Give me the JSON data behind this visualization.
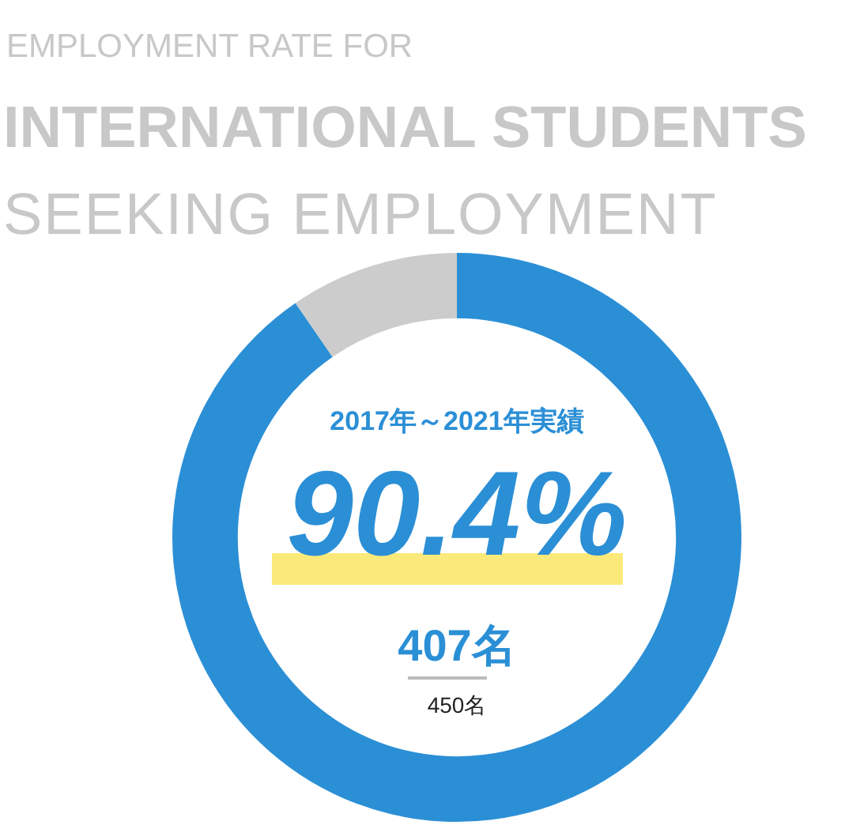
{
  "chart_data": {
    "type": "donut",
    "title": "INTERNATIONAL STUDENTS",
    "annotations": [
      "EMPLOYMENT RATE FOR",
      "SEEKING EMPLOYMENT",
      "2017年～2021年実績",
      "90.4%",
      "407名",
      "450名"
    ],
    "categories": [
      null,
      null
    ],
    "values": [
      90.4,
      9.6
    ],
    "colors": [
      "#2b8fd6",
      "#cccccc"
    ],
    "legend": false
  }
}
